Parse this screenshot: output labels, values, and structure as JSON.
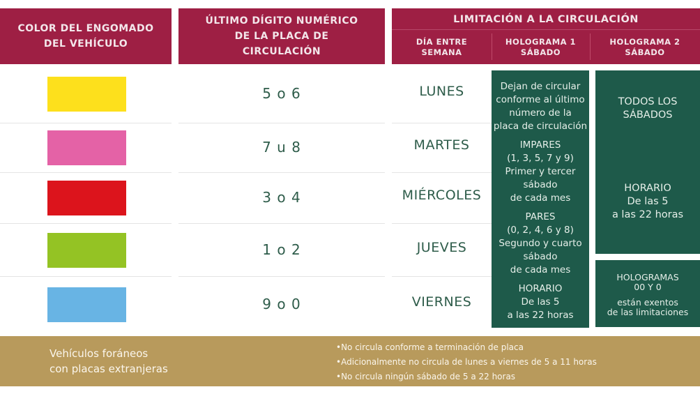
{
  "header": {
    "color_col": "COLOR DEL ENGOMADO DEL VEHÍCULO",
    "digit_col": "ÚLTIMO DÍGITO NUMÉRICO DE LA PLACA DE CIRCULACIÓN",
    "limit_col": "LIMITACIÓN A LA CIRCULACIÓN",
    "sub": [
      "DÍA ENTRE SEMANA",
      "HOLOGRAMA 1 SÁBADO",
      "HOLOGRAMA 2 SÁBADO"
    ]
  },
  "rows": [
    {
      "color": "#fde01c",
      "color_name": "amarillo",
      "digits": "5 o 6",
      "day": "LUNES"
    },
    {
      "color": "#e462a6",
      "color_name": "rosa",
      "digits": "7 u 8",
      "day": "MARTES"
    },
    {
      "color": "#dc141c",
      "color_name": "rojo",
      "digits": "3 o 4",
      "day": "MIÉRCOLES"
    },
    {
      "color": "#94c324",
      "color_name": "verde",
      "digits": "1 o 2",
      "day": "JUEVES"
    },
    {
      "color": "#68b4e4",
      "color_name": "azul",
      "digits": "9 o 0",
      "day": "VIERNES"
    }
  ],
  "holo1": {
    "intro": [
      "Dejan de circular",
      "conforme al último",
      "número de la",
      "placa de circulación"
    ],
    "impares": [
      "IMPARES",
      "(1, 3, 5, 7 y 9)",
      "Primer y tercer",
      "sábado",
      "de cada mes"
    ],
    "pares": [
      "PARES",
      "(0, 2, 4, 6 y 8)",
      "Segundo y cuarto",
      "sábado",
      "de cada mes"
    ],
    "horario": [
      "HORARIO",
      "De las 5",
      "a las 22 horas"
    ]
  },
  "holo2": {
    "todos": [
      "TODOS LOS",
      "SÁBADOS"
    ],
    "horario": [
      "HORARIO",
      "De las 5",
      "a las 22 horas"
    ]
  },
  "exentos": {
    "title": [
      "HOLOGRAMAS",
      "00 Y 0"
    ],
    "text": [
      "están exentos",
      "de las limitaciones"
    ]
  },
  "foraneos": {
    "label": [
      "Vehículos foráneos",
      "con placas extranjeras"
    ],
    "rules": [
      "•No circula conforme a terminación de placa",
      "•Adicionalmente no circula de lunes a viernes de 5 a 11 horas",
      "•No circula ningún sábado de 5 a 22 horas"
    ]
  },
  "colors": {
    "header": "#9e1f44",
    "green": "#1e5a4a",
    "band": "#b89a5c"
  }
}
